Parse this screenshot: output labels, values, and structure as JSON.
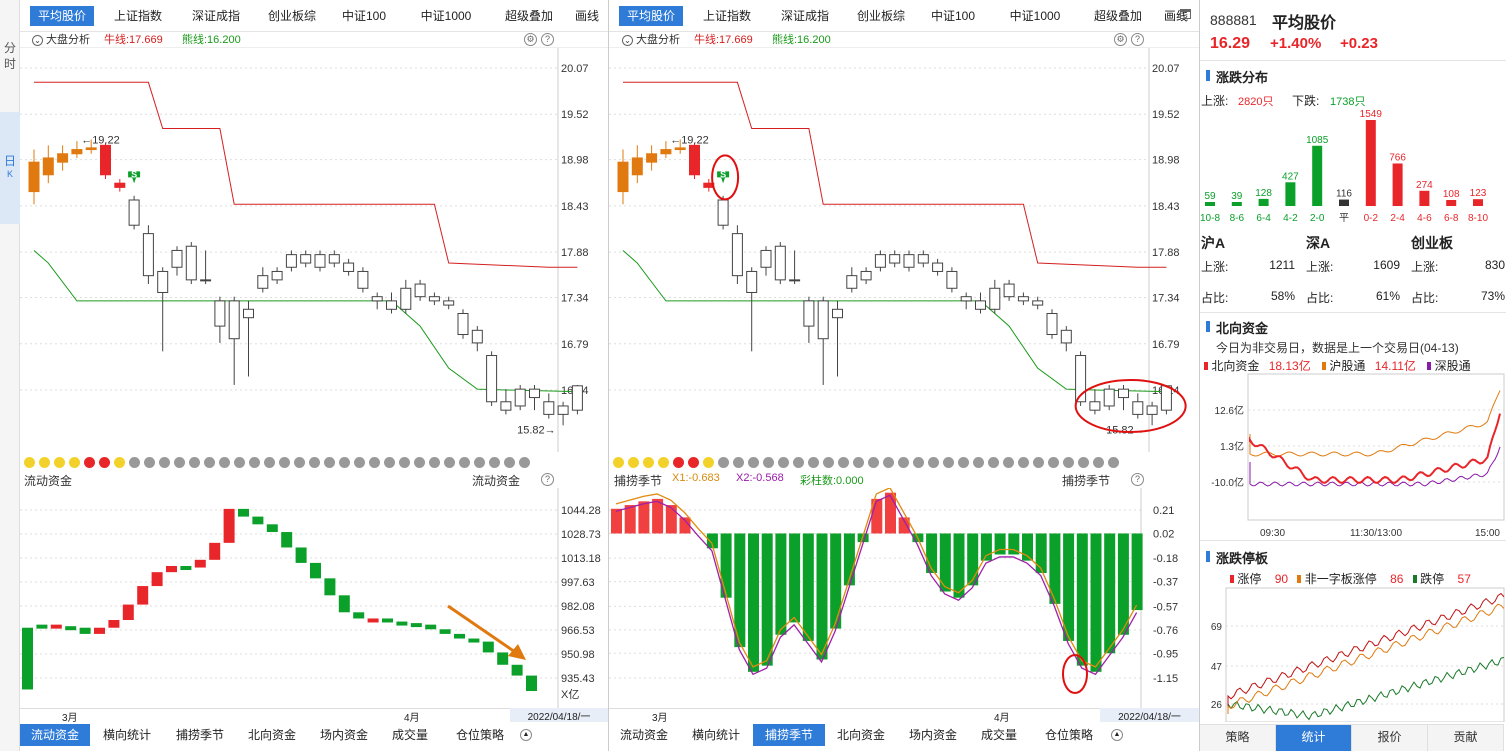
{
  "sidebar": {
    "tab_minute": "分时",
    "tab_day": "日",
    "tab_day_sub": "K"
  },
  "left": {
    "tabs": [
      "平均股价",
      "上证指数",
      "深证成指",
      "创业板综",
      "中证100",
      "中证1000",
      "超级叠加",
      "画线"
    ],
    "sub_title": "大盘分析",
    "bull_label": "牛线:17.669",
    "bear_label": "熊线:16.200",
    "price_axis": [
      "20.07",
      "19.52",
      "18.98",
      "18.43",
      "17.88",
      "17.34",
      "16.79",
      "16.24"
    ],
    "high_label": "19.22",
    "low_label": "15.82",
    "signal_mark": "S",
    "ind_title": "流动资金",
    "ind_title_right": "流动资金",
    "ind_axis": [
      "1044.28",
      "1028.73",
      "1013.18",
      "997.63",
      "982.08",
      "966.53",
      "950.98",
      "935.43"
    ],
    "ind_unit": "X亿",
    "months": [
      "3月",
      "4月"
    ],
    "date": "2022/04/18/一",
    "bottom_tabs": [
      "流动资金",
      "横向统计",
      "捕捞季节",
      "北向资金",
      "场内资金",
      "成交量",
      "仓位策略"
    ]
  },
  "right": {
    "tabs": [
      "平均股价",
      "上证指数",
      "深证成指",
      "创业板综",
      "中证100",
      "中证1000",
      "超级叠加",
      "画线"
    ],
    "sub_title": "大盘分析",
    "bull_label": "牛线:17.669",
    "bear_label": "熊线:16.200",
    "price_axis": [
      "20.07",
      "19.52",
      "18.98",
      "18.43",
      "17.88",
      "17.34",
      "16.79",
      "16.24"
    ],
    "high_label": "19.22",
    "low_label": "15.82",
    "signal_mark": "S",
    "ind_title": "捕捞季节",
    "ind_title_right": "捕捞季节",
    "x1_label": "X1:-0.683",
    "x2_label": "X2:-0.568",
    "bars_label": "彩柱数:0.000",
    "ind_axis": [
      "0.21",
      "0.02",
      "-0.18",
      "-0.37",
      "-0.57",
      "-0.76",
      "-0.95",
      "-1.15"
    ],
    "months": [
      "3月",
      "4月"
    ],
    "date": "2022/04/18/一",
    "bottom_tabs": [
      "流动资金",
      "横向统计",
      "捕捞季节",
      "北向资金",
      "场内资金",
      "成交量",
      "仓位策略"
    ]
  },
  "info": {
    "code": "888881",
    "name": "平均股价",
    "price": "16.29",
    "change_pct": "+1.40%",
    "change": "+0.23",
    "dist_title": "涨跌分布",
    "up_label": "上涨:",
    "up_count": "2820只",
    "down_label": "下跌:",
    "down_count": "1738只",
    "dist_values": [
      "59",
      "39",
      "128",
      "427",
      "1085",
      "116",
      "1549",
      "766",
      "274",
      "108",
      "123"
    ],
    "dist_labels": [
      "10-8",
      "8-6",
      "6-4",
      "4-2",
      "2-0",
      "平",
      "0-2",
      "2-4",
      "4-6",
      "6-8",
      "8-10"
    ],
    "markets": [
      {
        "name": "沪A",
        "up_label": "上涨:",
        "up": "1211",
        "ratio_label": "占比:",
        "ratio": "58%"
      },
      {
        "name": "深A",
        "up_label": "上涨:",
        "up": "1609",
        "ratio_label": "占比:",
        "ratio": "61%"
      },
      {
        "name": "创业板",
        "up_label": "上涨:",
        "up": "830",
        "ratio_label": "占比:",
        "ratio": "73%"
      }
    ],
    "north_title": "北向资金",
    "north_note": "今日为非交易日，数据是上一个交易日(04-13)",
    "north_total_label": "北向资金",
    "north_total": "18.13亿",
    "hgt_label": "沪股通",
    "hgt": "14.11亿",
    "sgt_label": "深股通",
    "north_axis": [
      "12.6亿",
      "1.3亿",
      "-10.0亿"
    ],
    "north_times": [
      "09:30",
      "11:30/13:00",
      "15:00"
    ],
    "limit_title": "涨跌停板",
    "limit_up_label": "涨停",
    "limit_up": "90",
    "nonone_label": "非一字板涨停",
    "nonone": "86",
    "limit_down_label": "跌停",
    "limit_down": "57",
    "limit_axis": [
      "69",
      "47",
      "26"
    ],
    "bottom_tabs": [
      "策略",
      "统计",
      "报价",
      "贡献"
    ]
  },
  "colors": {
    "up": "#e8262a",
    "down": "#0aa02a",
    "accent": "#2f7bd8",
    "bull": "#d42020",
    "bear": "#1a9a1a",
    "orange": "#e07a10"
  },
  "chart_data": [
    {
      "type": "candlestick",
      "title": "大盘分析",
      "series": [
        {
          "name": "牛线",
          "last": 17.669
        },
        {
          "name": "熊线",
          "last": 16.2
        }
      ],
      "y_ticks": [
        20.07,
        19.52,
        18.98,
        18.43,
        17.88,
        17.34,
        16.79,
        16.24
      ],
      "high": 19.22,
      "low": 15.82,
      "candles": [
        [
          18.6,
          18.95,
          18.45,
          19.1
        ],
        [
          18.8,
          19.0,
          18.7,
          19.15
        ],
        [
          18.95,
          19.05,
          18.85,
          19.15
        ],
        [
          19.05,
          19.1,
          19.0,
          19.2
        ],
        [
          19.1,
          19.12,
          19.05,
          19.22
        ],
        [
          19.15,
          18.8,
          18.75,
          19.18
        ],
        [
          18.7,
          18.65,
          18.6,
          18.75
        ],
        [
          18.5,
          18.2,
          18.15,
          18.55
        ],
        [
          18.1,
          17.6,
          17.5,
          18.2
        ],
        [
          17.65,
          17.4,
          16.7,
          17.7
        ],
        [
          17.7,
          17.9,
          17.6,
          17.95
        ],
        [
          17.95,
          17.55,
          17.5,
          18.0
        ],
        [
          17.55,
          17.55,
          17.5,
          17.9
        ],
        [
          17.0,
          17.3,
          16.8,
          17.35
        ],
        [
          17.3,
          16.85,
          16.3,
          17.35
        ],
        [
          17.1,
          17.2,
          16.4,
          17.3
        ],
        [
          17.45,
          17.6,
          17.4,
          17.7
        ],
        [
          17.55,
          17.65,
          17.5,
          17.7
        ],
        [
          17.7,
          17.85,
          17.65,
          17.9
        ],
        [
          17.85,
          17.75,
          17.7,
          17.9
        ],
        [
          17.7,
          17.85,
          17.65,
          17.9
        ],
        [
          17.85,
          17.75,
          17.7,
          17.9
        ],
        [
          17.75,
          17.65,
          17.6,
          17.8
        ],
        [
          17.65,
          17.45,
          17.4,
          17.7
        ],
        [
          17.35,
          17.3,
          17.2,
          17.4
        ],
        [
          17.3,
          17.2,
          17.15,
          17.4
        ],
        [
          17.2,
          17.45,
          17.15,
          17.55
        ],
        [
          17.5,
          17.35,
          17.3,
          17.55
        ],
        [
          17.35,
          17.3,
          17.25,
          17.4
        ],
        [
          17.3,
          17.25,
          17.2,
          17.35
        ],
        [
          17.15,
          16.9,
          16.85,
          17.2
        ],
        [
          16.95,
          16.8,
          16.7,
          17.0
        ],
        [
          16.65,
          16.1,
          16.05,
          16.7
        ],
        [
          16.1,
          16.0,
          15.95,
          16.25
        ],
        [
          16.05,
          16.25,
          16.0,
          16.3
        ],
        [
          16.15,
          16.25,
          16.0,
          16.3
        ],
        [
          16.1,
          15.95,
          15.9,
          16.2
        ],
        [
          15.95,
          16.05,
          15.82,
          16.1
        ],
        [
          16.0,
          16.29,
          15.95,
          16.3
        ]
      ]
    },
    {
      "type": "bar",
      "title": "流动资金",
      "y_ticks": [
        1044.28,
        1028.73,
        1013.18,
        997.63,
        982.08,
        966.53,
        950.98,
        935.43
      ],
      "values": [
        [
          968,
          928
        ],
        [
          970,
          968
        ],
        [
          969,
          970
        ],
        [
          969,
          968
        ],
        [
          968,
          964
        ],
        [
          964,
          968
        ],
        [
          968,
          973
        ],
        [
          973,
          983
        ],
        [
          983,
          995
        ],
        [
          995,
          1004
        ],
        [
          1004,
          1008
        ],
        [
          1008,
          1007
        ],
        [
          1007,
          1012
        ],
        [
          1012,
          1023
        ],
        [
          1023,
          1045
        ],
        [
          1045,
          1040
        ],
        [
          1040,
          1035
        ],
        [
          1035,
          1030
        ],
        [
          1030,
          1020
        ],
        [
          1020,
          1010
        ],
        [
          1010,
          1000
        ],
        [
          1000,
          989
        ],
        [
          989,
          978
        ],
        [
          978,
          974
        ],
        [
          974,
          974
        ],
        [
          974,
          972
        ],
        [
          972,
          971
        ],
        [
          971,
          970
        ],
        [
          970,
          967
        ],
        [
          967,
          964
        ],
        [
          964,
          961
        ],
        [
          961,
          959
        ],
        [
          959,
          952
        ],
        [
          952,
          944
        ],
        [
          944,
          937
        ],
        [
          937,
          927
        ]
      ]
    },
    {
      "type": "bar",
      "title": "捕捞季节",
      "y_ticks": [
        0.21,
        0.02,
        -0.18,
        -0.37,
        -0.57,
        -0.76,
        -0.95,
        -1.15
      ],
      "series": [
        {
          "name": "X1",
          "last": -0.683
        },
        {
          "name": "X2",
          "last": -0.568
        },
        {
          "name": "彩柱数",
          "last": 0.0
        }
      ],
      "values": [
        0.22,
        0.25,
        0.28,
        0.3,
        0.25,
        0.15,
        0.02,
        -0.1,
        -0.5,
        -0.9,
        -1.1,
        -1.05,
        -0.8,
        -0.7,
        -0.85,
        -1.0,
        -0.75,
        -0.4,
        -0.05,
        0.3,
        0.35,
        0.15,
        -0.05,
        -0.3,
        -0.45,
        -0.5,
        -0.4,
        -0.2,
        -0.15,
        -0.15,
        -0.2,
        -0.3,
        -0.55,
        -0.85,
        -1.05,
        -1.1,
        -0.95,
        -0.8,
        -0.6
      ]
    },
    {
      "type": "bar",
      "title": "涨跌分布",
      "categories": [
        "10-8",
        "8-6",
        "6-4",
        "4-2",
        "2-0",
        "平",
        "0-2",
        "2-4",
        "4-6",
        "6-8",
        "8-10"
      ],
      "values": [
        59,
        39,
        128,
        427,
        1085,
        116,
        1549,
        766,
        274,
        108,
        123
      ]
    }
  ]
}
